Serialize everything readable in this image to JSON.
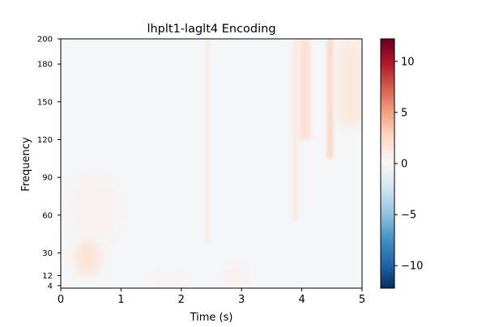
{
  "chart_data": {
    "type": "heatmap",
    "title": "lhplt1-laglt4 Encoding",
    "xlabel": "Time (s)",
    "ylabel": "Frequency",
    "xlim": [
      0,
      5
    ],
    "ylim": [
      2,
      200
    ],
    "x_ticks": [
      0,
      1,
      2,
      3,
      4,
      5
    ],
    "y_ticks": [
      4,
      12,
      30,
      60,
      90,
      120,
      150,
      180,
      200
    ],
    "colormap": "RdBu_r",
    "colorbar": {
      "range": [
        -12.2,
        12.2
      ],
      "ticks": [
        -10,
        -5,
        0,
        5,
        10
      ],
      "tick_labels": [
        "−10",
        "−5",
        "0",
        "5",
        "10"
      ]
    },
    "features": [
      {
        "label": "low-frequency blob",
        "time": [
          0.25,
          0.65
        ],
        "frequency": [
          12,
          40
        ],
        "value": 2.0
      },
      {
        "label": "weak low patch",
        "time": [
          0.2,
          0.9
        ],
        "frequency": [
          40,
          90
        ],
        "value": 0.6
      },
      {
        "label": "vertical streak",
        "time": [
          2.4,
          2.46
        ],
        "frequency": [
          40,
          200
        ],
        "value": 1.5
      },
      {
        "label": "vertical streak",
        "time": [
          3.85,
          3.93
        ],
        "frequency": [
          55,
          200
        ],
        "value": 1.4
      },
      {
        "label": "high-frequency band",
        "time": [
          3.95,
          4.15
        ],
        "frequency": [
          120,
          200
        ],
        "value": 2.0
      },
      {
        "label": "high-frequency band",
        "time": [
          4.42,
          4.52
        ],
        "frequency": [
          105,
          200
        ],
        "value": 2.8
      },
      {
        "label": "high-frequency band",
        "time": [
          4.62,
          5.0
        ],
        "frequency": [
          130,
          200
        ],
        "value": 1.5
      },
      {
        "label": "weak low patch",
        "time": [
          2.7,
          3.05
        ],
        "frequency": [
          2,
          20
        ],
        "value": 0.8
      },
      {
        "label": "weak low patch",
        "time": [
          1.5,
          2.1
        ],
        "frequency": [
          2,
          12
        ],
        "value": 0.5
      }
    ]
  }
}
